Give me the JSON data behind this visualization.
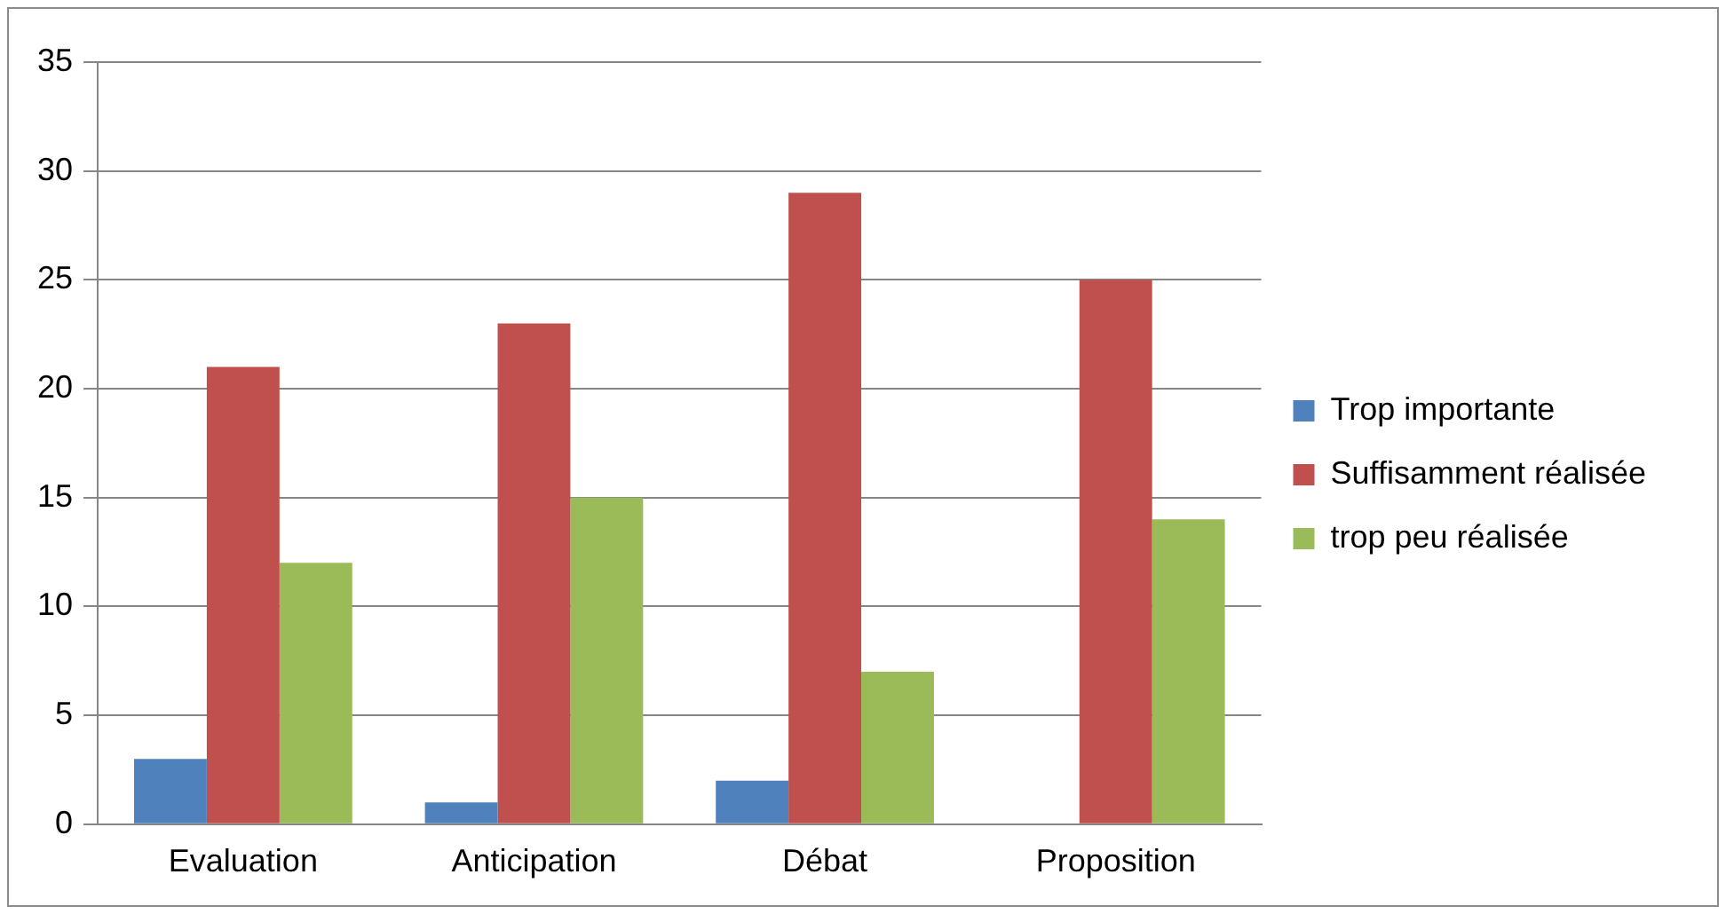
{
  "chart_data": {
    "type": "bar",
    "categories": [
      "Evaluation",
      "Anticipation",
      "Débat",
      "Proposition"
    ],
    "series": [
      {
        "name": "Trop importante",
        "color": "#4f81bd",
        "values": [
          3,
          1,
          2,
          0
        ]
      },
      {
        "name": "Suffisamment réalisée",
        "color": "#c0504d",
        "values": [
          21,
          23,
          29,
          25
        ]
      },
      {
        "name": "trop peu réalisée",
        "color": "#9bbb59",
        "values": [
          12,
          15,
          7,
          14
        ]
      }
    ],
    "ylim": [
      0,
      35
    ],
    "yticks": [
      0,
      5,
      10,
      15,
      20,
      25,
      30,
      35
    ],
    "grid": "y",
    "legend": "right"
  }
}
